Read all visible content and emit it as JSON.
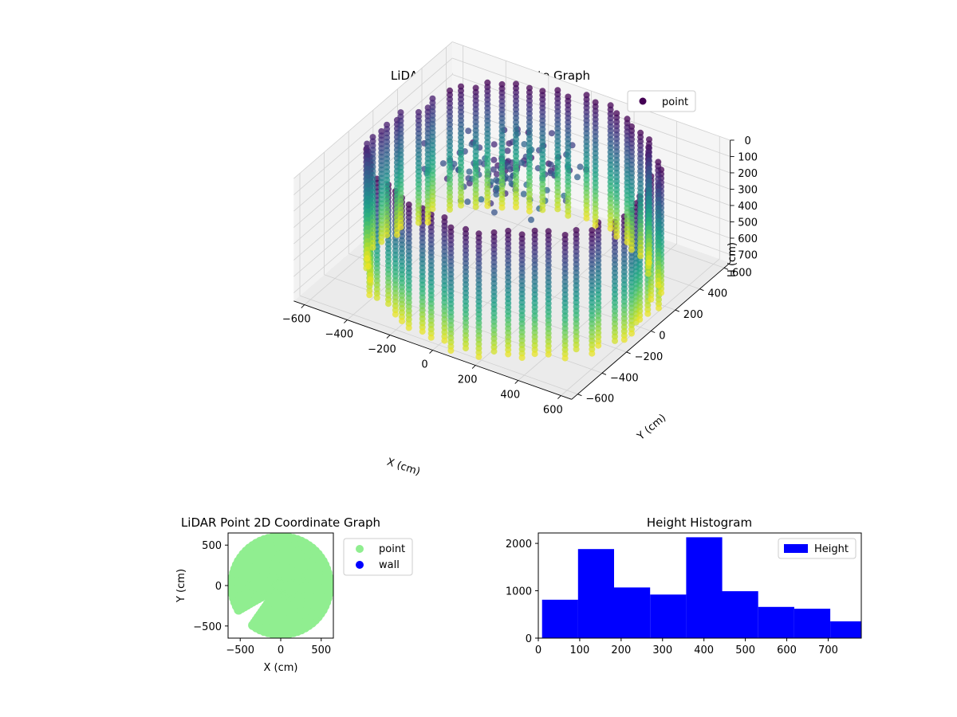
{
  "chart_data": [
    {
      "type": "scatter",
      "projection": "3d",
      "title": "LiDAR Point 3D Coordinate Graph",
      "xlabel": "X (cm)",
      "ylabel": "Y (cm)",
      "zlabel": "H (cm)",
      "xlim": [
        -650,
        650
      ],
      "ylim": [
        -650,
        650
      ],
      "zlim": [
        750,
        0
      ],
      "x_ticks": [
        -600,
        -400,
        -200,
        0,
        200,
        400,
        600
      ],
      "y_ticks": [
        -600,
        -400,
        -200,
        0,
        200,
        400,
        600
      ],
      "z_ticks": [
        0,
        100,
        200,
        300,
        400,
        500,
        600,
        700
      ],
      "grid": true,
      "colormap": "viridis",
      "legend": {
        "position": "top-right",
        "entries": [
          "point"
        ]
      },
      "series": [
        {
          "name": "point",
          "description_shape": "cylindrical wall of vertical scan columns, radius ~600 cm, heights 0-780 cm, color mapped to height",
          "radius": 600,
          "h_range": [
            0,
            780
          ]
        }
      ]
    },
    {
      "type": "scatter",
      "title": "LiDAR Point 2D Coordinate Graph",
      "xlabel": "X (cm)",
      "ylabel": "Y (cm)",
      "xlim": [
        -650,
        650
      ],
      "ylim": [
        -650,
        650
      ],
      "x_ticks": [
        -500,
        0,
        500
      ],
      "y_ticks": [
        -500,
        0,
        500
      ],
      "legend": {
        "position": "outside-right",
        "entries": [
          "point",
          "wall"
        ]
      },
      "series": [
        {
          "name": "point",
          "color": "#90ee90",
          "shape": "filled disc radius ~600 cm with notch near (-450,-400)"
        },
        {
          "name": "wall",
          "color": "#0000ff",
          "points": []
        }
      ]
    },
    {
      "type": "bar",
      "subtype": "histogram",
      "title": "Height Histogram",
      "xlim": [
        0,
        780
      ],
      "ylim": [
        0,
        2220
      ],
      "x_ticks": [
        0,
        100,
        200,
        300,
        400,
        500,
        600,
        700
      ],
      "y_ticks": [
        0,
        1000,
        2000
      ],
      "bin_edges": [
        9,
        96,
        183,
        270,
        357,
        444,
        531,
        618,
        705,
        792
      ],
      "values": [
        810,
        1880,
        1070,
        920,
        2130,
        990,
        660,
        620,
        355
      ],
      "color": "#0000ff",
      "legend": {
        "position": "top-right",
        "entries": [
          "Height"
        ]
      },
      "series": [
        {
          "name": "Height"
        }
      ]
    }
  ]
}
